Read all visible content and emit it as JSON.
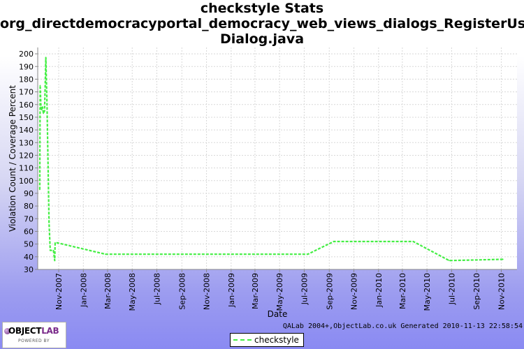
{
  "title_lines": [
    "checkstyle  Stats",
    "org_directdemocracyportal_democracy_web_views_dialogs_RegisterUser",
    "Dialog.java"
  ],
  "footer": {
    "logo_text_main": "OBJECT",
    "logo_text_accent": "LAB",
    "logo_tagline": "POWERED BY",
    "generated_text": "QALab 2004+,ObjectLab.co.uk Generated 2010-11-13 22:58:54"
  },
  "legend": {
    "label": "checkstyle"
  },
  "colors": {
    "series": "#44ee44",
    "plot_background": "#ffffff",
    "grid": "#d8d8d8"
  },
  "chart_data": {
    "type": "line",
    "title": "checkstyle  Stats org_directdemocracyportal_democracy_web_views_dialogs_RegisterUserDialog.java",
    "xlabel": "Date",
    "ylabel": "Violation Count / Coverage Percent",
    "ylim": [
      30,
      205
    ],
    "xlim": [
      "2007-09-10",
      "2010-12-10"
    ],
    "grid": true,
    "legend_position": "bottom",
    "y_ticks": [
      30,
      40,
      50,
      60,
      70,
      80,
      90,
      100,
      110,
      120,
      130,
      140,
      150,
      160,
      170,
      180,
      190,
      200
    ],
    "x_ticks": [
      "2007-11-01",
      "2008-01-01",
      "2008-03-01",
      "2008-05-01",
      "2008-07-01",
      "2008-09-01",
      "2008-11-01",
      "2009-01-01",
      "2009-03-01",
      "2009-05-01",
      "2009-07-01",
      "2009-09-01",
      "2009-11-01",
      "2010-01-01",
      "2010-03-01",
      "2010-05-01",
      "2010-07-01",
      "2010-09-01",
      "2010-11-01"
    ],
    "x_tick_labels": [
      "Nov-2007",
      "Jan-2008",
      "Mar-2008",
      "May-2008",
      "Jul-2008",
      "Sep-2008",
      "Nov-2008",
      "Jan-2009",
      "Mar-2009",
      "May-2009",
      "Jul-2009",
      "Sep-2009",
      "Nov-2009",
      "Jan-2010",
      "Mar-2010",
      "May-2010",
      "Jul-2010",
      "Sep-2010",
      "Nov-2010"
    ],
    "series": [
      {
        "name": "checkstyle",
        "points": [
          {
            "x": "2007-09-15",
            "y": 93
          },
          {
            "x": "2007-09-16",
            "y": 175
          },
          {
            "x": "2007-09-18",
            "y": 158
          },
          {
            "x": "2007-09-20",
            "y": 156
          },
          {
            "x": "2007-09-22",
            "y": 158
          },
          {
            "x": "2007-09-24",
            "y": 153
          },
          {
            "x": "2007-09-27",
            "y": 155
          },
          {
            "x": "2007-09-30",
            "y": 197
          },
          {
            "x": "2007-10-03",
            "y": 160
          },
          {
            "x": "2007-10-08",
            "y": 67
          },
          {
            "x": "2007-10-11",
            "y": 45
          },
          {
            "x": "2007-10-19",
            "y": 45
          },
          {
            "x": "2007-10-22",
            "y": 37
          },
          {
            "x": "2007-10-23",
            "y": 51
          },
          {
            "x": "2007-10-28",
            "y": 51
          },
          {
            "x": "2008-02-25",
            "y": 42
          },
          {
            "x": "2009-07-10",
            "y": 42
          },
          {
            "x": "2009-09-12",
            "y": 52
          },
          {
            "x": "2010-03-28",
            "y": 52
          },
          {
            "x": "2010-06-25",
            "y": 37
          },
          {
            "x": "2010-11-05",
            "y": 38
          }
        ]
      }
    ]
  }
}
